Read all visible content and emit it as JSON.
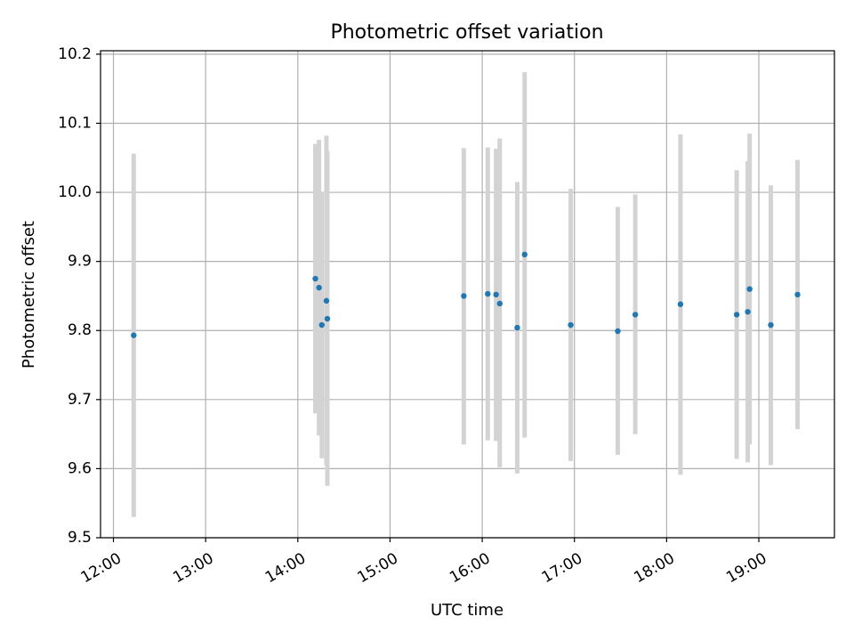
{
  "chart_data": {
    "type": "scatter",
    "title": "Photometric offset variation",
    "xlabel": "UTC time",
    "ylabel": "Photometric offset",
    "xlim": [
      11.86,
      19.82
    ],
    "ylim": [
      9.5,
      10.205
    ],
    "grid": true,
    "xticks": [
      {
        "value": 12,
        "label": "12:00"
      },
      {
        "value": 13,
        "label": "13:00"
      },
      {
        "value": 14,
        "label": "14:00"
      },
      {
        "value": 15,
        "label": "15:00"
      },
      {
        "value": 16,
        "label": "16:00"
      },
      {
        "value": 17,
        "label": "17:00"
      },
      {
        "value": 18,
        "label": "18:00"
      },
      {
        "value": 19,
        "label": "19:00"
      }
    ],
    "yticks": [
      {
        "value": 9.5,
        "label": "9.5"
      },
      {
        "value": 9.6,
        "label": "9.6"
      },
      {
        "value": 9.7,
        "label": "9.7"
      },
      {
        "value": 9.8,
        "label": "9.8"
      },
      {
        "value": 9.9,
        "label": "9.9"
      },
      {
        "value": 10.0,
        "label": "10.0"
      },
      {
        "value": 10.1,
        "label": "10.1"
      },
      {
        "value": 10.2,
        "label": "10.2"
      }
    ],
    "series": [
      {
        "name": "offset",
        "marker_color": "#1f77b4",
        "errorbar_color": "#d3d3d3",
        "points": [
          {
            "x": 12.22,
            "y": 9.793,
            "ylow": 9.53,
            "yhigh": 10.056
          },
          {
            "x": 14.19,
            "y": 9.875,
            "ylow": 9.68,
            "yhigh": 10.07
          },
          {
            "x": 14.23,
            "y": 9.862,
            "ylow": 9.648,
            "yhigh": 10.076
          },
          {
            "x": 14.26,
            "y": 9.808,
            "ylow": 9.615,
            "yhigh": 10.001
          },
          {
            "x": 14.31,
            "y": 9.843,
            "ylow": 9.605,
            "yhigh": 10.082
          },
          {
            "x": 14.32,
            "y": 9.817,
            "ylow": 9.575,
            "yhigh": 10.06
          },
          {
            "x": 15.8,
            "y": 9.85,
            "ylow": 9.635,
            "yhigh": 10.064
          },
          {
            "x": 16.06,
            "y": 9.853,
            "ylow": 9.641,
            "yhigh": 10.065
          },
          {
            "x": 16.15,
            "y": 9.852,
            "ylow": 9.64,
            "yhigh": 10.063
          },
          {
            "x": 16.19,
            "y": 9.839,
            "ylow": 9.602,
            "yhigh": 10.078
          },
          {
            "x": 16.38,
            "y": 9.804,
            "ylow": 9.593,
            "yhigh": 10.015
          },
          {
            "x": 16.46,
            "y": 9.91,
            "ylow": 9.645,
            "yhigh": 10.174
          },
          {
            "x": 16.96,
            "y": 9.808,
            "ylow": 9.611,
            "yhigh": 10.005
          },
          {
            "x": 17.47,
            "y": 9.799,
            "ylow": 9.62,
            "yhigh": 9.979
          },
          {
            "x": 17.66,
            "y": 9.823,
            "ylow": 9.65,
            "yhigh": 9.997
          },
          {
            "x": 18.15,
            "y": 9.838,
            "ylow": 9.591,
            "yhigh": 10.084
          },
          {
            "x": 18.76,
            "y": 9.823,
            "ylow": 9.614,
            "yhigh": 10.032
          },
          {
            "x": 18.88,
            "y": 9.827,
            "ylow": 9.609,
            "yhigh": 10.045
          },
          {
            "x": 18.9,
            "y": 9.86,
            "ylow": 9.635,
            "yhigh": 10.085
          },
          {
            "x": 19.13,
            "y": 9.808,
            "ylow": 9.605,
            "yhigh": 10.01
          },
          {
            "x": 19.42,
            "y": 9.852,
            "ylow": 9.657,
            "yhigh": 10.047
          }
        ]
      }
    ]
  }
}
